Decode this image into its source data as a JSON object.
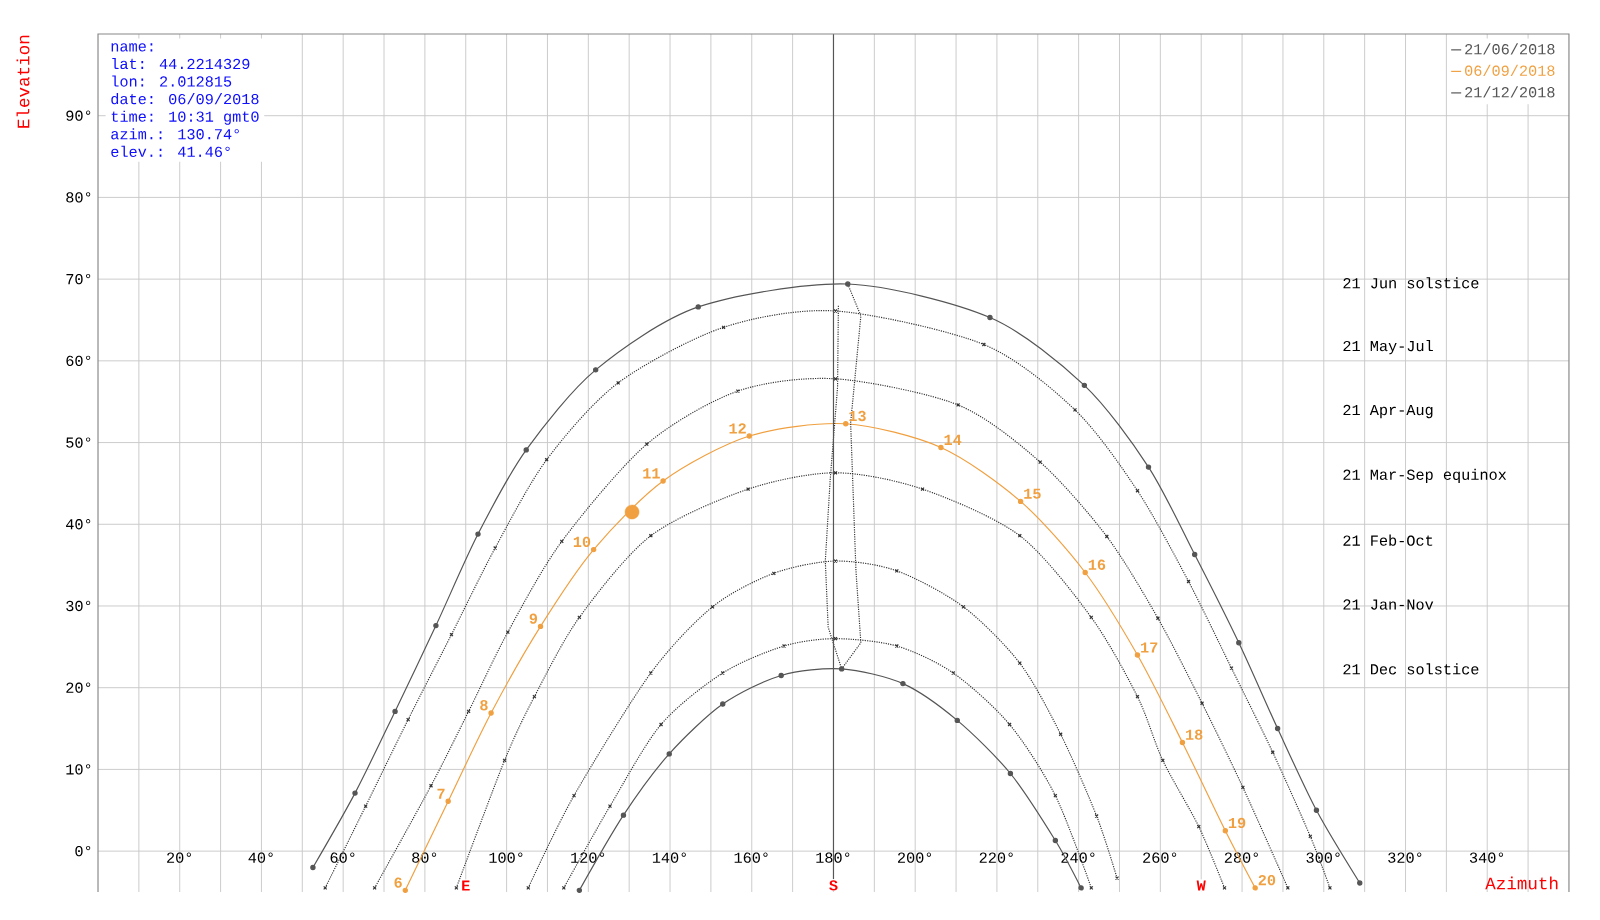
{
  "chart_data": {
    "type": "line",
    "xlabel": "Azimuth",
    "ylabel": "Elevation",
    "xlim": [
      0,
      360
    ],
    "ylim": [
      -5,
      100
    ],
    "xticks": [
      {
        "value": 10,
        "label": null
      },
      {
        "value": 20,
        "label": "20°"
      },
      {
        "value": 30,
        "label": null
      },
      {
        "value": 40,
        "label": "40°"
      },
      {
        "value": 50,
        "label": null
      },
      {
        "value": 60,
        "label": "60°"
      },
      {
        "value": 70,
        "label": null
      },
      {
        "value": 80,
        "label": "80°"
      },
      {
        "value": 90,
        "label": null
      },
      {
        "value": 100,
        "label": "100°"
      },
      {
        "value": 110,
        "label": null
      },
      {
        "value": 120,
        "label": "120°"
      },
      {
        "value": 130,
        "label": null
      },
      {
        "value": 140,
        "label": "140°"
      },
      {
        "value": 150,
        "label": null
      },
      {
        "value": 160,
        "label": "160°"
      },
      {
        "value": 170,
        "label": null
      },
      {
        "value": 180,
        "label": "180°"
      },
      {
        "value": 190,
        "label": null
      },
      {
        "value": 200,
        "label": "200°"
      },
      {
        "value": 210,
        "label": null
      },
      {
        "value": 220,
        "label": "220°"
      },
      {
        "value": 230,
        "label": null
      },
      {
        "value": 240,
        "label": "240°"
      },
      {
        "value": 250,
        "label": null
      },
      {
        "value": 260,
        "label": "260°"
      },
      {
        "value": 270,
        "label": null
      },
      {
        "value": 280,
        "label": "280°"
      },
      {
        "value": 290,
        "label": null
      },
      {
        "value": 300,
        "label": "300°"
      },
      {
        "value": 310,
        "label": null
      },
      {
        "value": 320,
        "label": "320°"
      },
      {
        "value": 330,
        "label": null
      },
      {
        "value": 340,
        "label": "340°"
      },
      {
        "value": 350,
        "label": null
      }
    ],
    "yticks": [
      {
        "value": 0,
        "label": "0°"
      },
      {
        "value": 10,
        "label": "10°"
      },
      {
        "value": 20,
        "label": "20°"
      },
      {
        "value": 30,
        "label": "30°"
      },
      {
        "value": 40,
        "label": "40°"
      },
      {
        "value": 50,
        "label": "50°"
      },
      {
        "value": 60,
        "label": "60°"
      },
      {
        "value": 70,
        "label": "70°"
      },
      {
        "value": 80,
        "label": "80°"
      },
      {
        "value": 90,
        "label": "90°"
      }
    ],
    "grid": true,
    "legend": "top right",
    "ref_lines": [
      {
        "axis": "x",
        "value": 180,
        "color": "#555555"
      }
    ],
    "annotations": [
      "name:",
      "lat: 44.2214329",
      "lon: 2.012815",
      "date: 06/09/2018",
      "time: 10:31 gmt0",
      "azim.: 130.74°",
      "elev.: 41.46°",
      {
        "text": "6",
        "x": 75.2,
        "y": -4.8
      },
      {
        "text": "7",
        "x": 85.7,
        "y": 6.1
      },
      {
        "text": "8",
        "x": 96.2,
        "y": 16.9
      },
      {
        "text": "9",
        "x": 108.3,
        "y": 27.5
      },
      {
        "text": "10",
        "x": 121.3,
        "y": 36.9
      },
      {
        "text": "11",
        "x": 138.3,
        "y": 45.3
      },
      {
        "text": "12",
        "x": 159.4,
        "y": 50.8
      },
      {
        "text": "13",
        "x": 183,
        "y": 52.3
      },
      {
        "text": "14",
        "x": 206.3,
        "y": 49.4
      },
      {
        "text": "15",
        "x": 225.8,
        "y": 42.8
      },
      {
        "text": "16",
        "x": 241.6,
        "y": 34.1
      },
      {
        "text": "17",
        "x": 254.4,
        "y": 24
      },
      {
        "text": "18",
        "x": 265.4,
        "y": 13.3
      },
      {
        "text": "19",
        "x": 275.9,
        "y": 2.5
      },
      {
        "text": "20",
        "x": 283.2,
        "y": -4.5
      },
      {
        "text": "E",
        "x": 90
      },
      {
        "text": "S",
        "x": 180
      },
      {
        "text": "W",
        "x": 270
      },
      "21 Jun  solstice",
      "21 May-Jul",
      "21 Apr-Aug",
      "21 Mar-Sep equinox",
      "21 Feb-Oct",
      "21 Jan-Nov",
      "21 Dec  solstice"
    ],
    "series": [
      {
        "name": "21/06/2018",
        "color": "#555555",
        "line_style": "solid",
        "marker": "circle",
        "x": [
          52.6,
          62.9,
          72.7,
          82.7,
          93.0,
          104.8,
          121.8,
          146.9,
          183.5,
          218.3,
          241.4,
          257.1,
          268.4,
          279.2,
          288.7,
          298.2,
          308.8
        ],
        "values": [
          -2,
          7.1,
          17.1,
          27.6,
          38.8,
          49.1,
          58.9,
          66.6,
          69.4,
          65.3,
          57,
          47,
          36.3,
          25.5,
          15,
          5,
          -3.9
        ]
      },
      {
        "name": "06/09/2018",
        "color": "#f0a040",
        "line_style": "solid",
        "marker": "circle",
        "x": [
          75.2,
          85.7,
          96.2,
          108.3,
          121.3,
          138.3,
          159.4,
          183,
          206.3,
          225.8,
          241.6,
          254.4,
          265.4,
          275.9,
          283.2
        ],
        "values": [
          -4.8,
          6.1,
          16.9,
          27.5,
          36.9,
          45.3,
          50.8,
          52.3,
          49.4,
          42.8,
          34.1,
          24,
          13.3,
          2.5,
          -4.5
        ]
      },
      {
        "name": "21/12/2018",
        "color": "#555555",
        "line_style": "solid",
        "marker": "circle",
        "x": [
          117.8,
          128.6,
          139.8,
          152.9,
          167.2,
          182,
          197,
          210.3,
          223.3,
          234.3,
          240.6
        ],
        "values": [
          -4.8,
          4.4,
          11.9,
          18,
          21.5,
          22.3,
          20.5,
          16,
          9.5,
          1.3,
          -4.5
        ]
      },
      {
        "color": "#333333",
        "line_style": "dotted",
        "marker": "cross",
        "x": [
          55.6,
          65.5,
          75.9,
          86.5,
          97.2,
          109.8,
          127.3,
          153.1,
          180.5,
          216.8,
          239.1,
          254.4,
          266.9,
          277.4,
          287.5,
          296.7,
          301.5
        ],
        "values": [
          -4.5,
          5.5,
          16.1,
          26.5,
          37.1,
          47.9,
          57.3,
          64.1,
          66.1,
          62,
          54,
          44.1,
          33,
          22.4,
          12.1,
          1.8,
          -4.5
        ]
      },
      {
        "color": "#333333",
        "line_style": "dotted",
        "marker": "cross",
        "x": [
          67.7,
          81.5,
          90.7,
          100.3,
          113.5,
          134.3,
          156.6,
          180.5,
          210.5,
          230.6,
          246.9,
          259.4,
          270.2,
          280.2,
          291.2
        ],
        "values": [
          -4.5,
          8,
          17.1,
          26.8,
          37.9,
          49.8,
          56.3,
          57.8,
          54.6,
          47.6,
          38.5,
          28.5,
          18.1,
          7.8,
          -4.5
        ]
      },
      {
        "color": "#333333",
        "line_style": "dotted",
        "marker": "cross",
        "x": [
          87.7,
          99.5,
          106.8,
          117.8,
          135.3,
          159.1,
          180.5,
          201.8,
          225.6,
          243.1,
          254.4,
          260.6,
          269.4,
          275.7
        ],
        "values": [
          -4.5,
          11.1,
          18.9,
          28.6,
          38.6,
          44.3,
          46.3,
          44.3,
          38.6,
          28.6,
          18.9,
          11.1,
          3,
          -4.5
        ]
      },
      {
        "color": "#333333",
        "line_style": "dotted",
        "marker": "cross",
        "x": [
          105.3,
          116.5,
          135.3,
          150.4,
          165.4,
          180.5,
          195.5,
          211.8,
          225.6,
          235.6,
          244.4,
          249.4
        ],
        "values": [
          -4.5,
          6.8,
          21.8,
          29.9,
          34,
          35.5,
          34.3,
          29.9,
          23,
          14.3,
          4.3,
          -3.3
        ]
      },
      {
        "color": "#333333",
        "line_style": "dotted",
        "marker": "cross",
        "x": [
          114,
          125.3,
          137.8,
          152.9,
          167.9,
          180.5,
          195.5,
          209.3,
          223.1,
          234.3,
          243.1
        ],
        "values": [
          -4.5,
          5.5,
          15.5,
          21.8,
          25.1,
          26,
          25.1,
          21.8,
          15.5,
          6.8,
          -4.5
        ]
      },
      {
        "color": "#333333",
        "line_style": "dotted",
        "marker": "none",
        "x": [
          183.5,
          186.7,
          184.2,
          185.5,
          186.7,
          182,
          178.7,
          178,
          179.2,
          181,
          181.2
        ],
        "values": [
          69.4,
          65.5,
          52.4,
          34.3,
          25.5,
          22.3,
          27.4,
          35.5,
          45.5,
          56.8,
          66.8
        ]
      },
      {
        "type": "scatter",
        "color": "#f0a040",
        "marker": "circle",
        "x": [
          130.7
        ],
        "values": [
          41.5
        ]
      }
    ]
  }
}
